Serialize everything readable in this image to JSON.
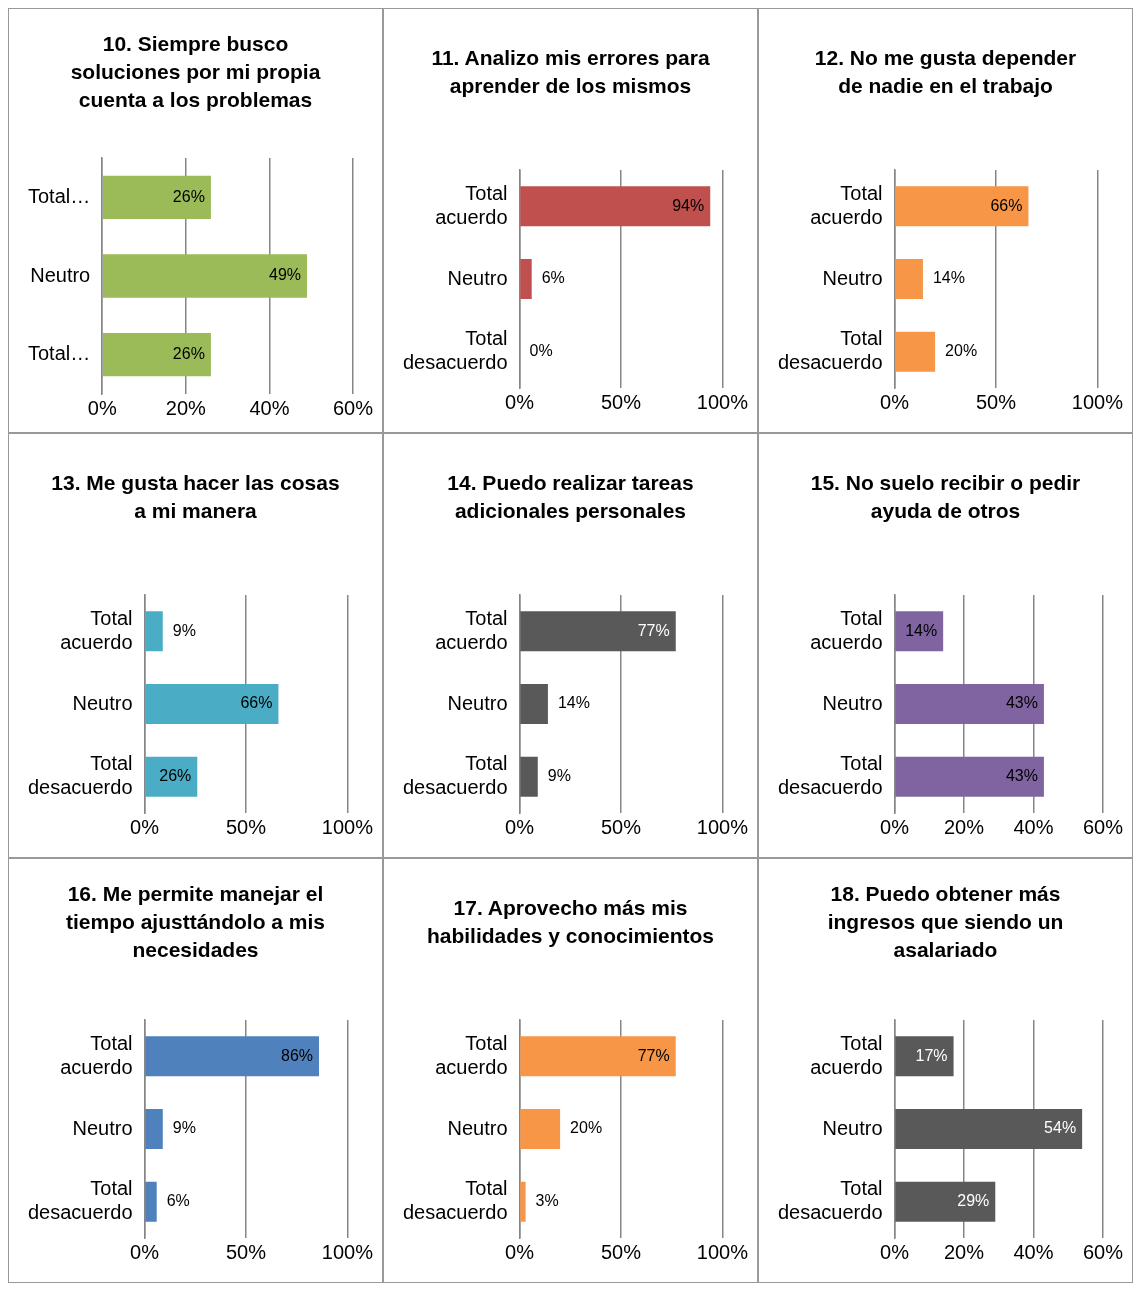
{
  "chart_data": [
    {
      "type": "bar",
      "orientation": "horizontal",
      "title": "10. Siempre busco soluciones por mi propia cuenta a los problemas",
      "categories": [
        "Total…",
        "Neutro",
        "Total…"
      ],
      "values": [
        26,
        49,
        26
      ],
      "value_labels": [
        "26%",
        "49%",
        "26%"
      ],
      "color": "#9bbb59",
      "xlim": [
        0,
        60
      ],
      "xticks": [
        {
          "value": 0,
          "label": "0%"
        },
        {
          "value": 20,
          "label": "20%"
        },
        {
          "value": 40,
          "label": "40%"
        },
        {
          "value": 60,
          "label": "60%"
        }
      ],
      "grid": "x",
      "legend": false
    },
    {
      "type": "bar",
      "orientation": "horizontal",
      "title": "11. Analizo mis errores para aprender de los mismos",
      "categories": [
        "Total acuerdo",
        "Neutro",
        "Total desacuerdo"
      ],
      "values": [
        94,
        6,
        0
      ],
      "value_labels": [
        "94%",
        "6%",
        "0%"
      ],
      "color": "#c0504d",
      "xlim": [
        0,
        100
      ],
      "xticks": [
        {
          "value": 0,
          "label": "0%"
        },
        {
          "value": 50,
          "label": "50%"
        },
        {
          "value": 100,
          "label": "100%"
        }
      ],
      "grid": "x",
      "legend": false
    },
    {
      "type": "bar",
      "orientation": "horizontal",
      "title": "12. No me gusta depender de nadie en el trabajo",
      "categories": [
        "Total acuerdo",
        "Neutro",
        "Total desacuerdo"
      ],
      "values": [
        66,
        14,
        20
      ],
      "value_labels": [
        "66%",
        "14%",
        "20%"
      ],
      "color": "#f79646",
      "xlim": [
        0,
        100
      ],
      "xticks": [
        {
          "value": 0,
          "label": "0%"
        },
        {
          "value": 50,
          "label": "50%"
        },
        {
          "value": 100,
          "label": "100%"
        }
      ],
      "grid": "x",
      "legend": false
    },
    {
      "type": "bar",
      "orientation": "horizontal",
      "title": "13. Me gusta hacer las cosas a mi manera",
      "categories": [
        "Total acuerdo",
        "Neutro",
        "Total desacuerdo"
      ],
      "values": [
        9,
        66,
        26
      ],
      "value_labels": [
        "9%",
        "66%",
        "26%"
      ],
      "color": "#4bacc6",
      "xlim": [
        0,
        100
      ],
      "xticks": [
        {
          "value": 0,
          "label": "0%"
        },
        {
          "value": 50,
          "label": "50%"
        },
        {
          "value": 100,
          "label": "100%"
        }
      ],
      "grid": "x",
      "legend": false
    },
    {
      "type": "bar",
      "orientation": "horizontal",
      "title": "14. Puedo realizar tareas adicionales personales",
      "categories": [
        "Total acuerdo",
        "Neutro",
        "Total desacuerdo"
      ],
      "values": [
        77,
        14,
        9
      ],
      "value_labels": [
        "77%",
        "14%",
        "9%"
      ],
      "color": "#595959",
      "xlim": [
        0,
        100
      ],
      "xticks": [
        {
          "value": 0,
          "label": "0%"
        },
        {
          "value": 50,
          "label": "50%"
        },
        {
          "value": 100,
          "label": "100%"
        }
      ],
      "grid": "x",
      "legend": false
    },
    {
      "type": "bar",
      "orientation": "horizontal",
      "title": "15. No suelo recibir o pedir ayuda de otros",
      "categories": [
        "Total acuerdo",
        "Neutro",
        "Total desacuerdo"
      ],
      "values": [
        14,
        43,
        43
      ],
      "value_labels": [
        "14%",
        "43%",
        "43%"
      ],
      "color": "#8064a2",
      "xlim": [
        0,
        60
      ],
      "xticks": [
        {
          "value": 0,
          "label": "0%"
        },
        {
          "value": 20,
          "label": "20%"
        },
        {
          "value": 40,
          "label": "40%"
        },
        {
          "value": 60,
          "label": "60%"
        }
      ],
      "grid": "x",
      "legend": false
    },
    {
      "type": "bar",
      "orientation": "horizontal",
      "title": "16. Me permite manejar el tiempo ajusttándolo a mis necesidades",
      "categories": [
        "Total acuerdo",
        "Neutro",
        "Total desacuerdo"
      ],
      "values": [
        86,
        9,
        6
      ],
      "value_labels": [
        "86%",
        "9%",
        "6%"
      ],
      "color": "#4f81bd",
      "xlim": [
        0,
        100
      ],
      "xticks": [
        {
          "value": 0,
          "label": "0%"
        },
        {
          "value": 50,
          "label": "50%"
        },
        {
          "value": 100,
          "label": "100%"
        }
      ],
      "grid": "x",
      "legend": false
    },
    {
      "type": "bar",
      "orientation": "horizontal",
      "title": "17. Aprovecho más mis habilidades y conocimientos",
      "categories": [
        "Total acuerdo",
        "Neutro",
        "Total desacuerdo"
      ],
      "values": [
        77,
        20,
        3
      ],
      "value_labels": [
        "77%",
        "20%",
        "3%"
      ],
      "color": "#f79646",
      "xlim": [
        0,
        100
      ],
      "xticks": [
        {
          "value": 0,
          "label": "0%"
        },
        {
          "value": 50,
          "label": "50%"
        },
        {
          "value": 100,
          "label": "100%"
        }
      ],
      "grid": "x",
      "legend": false
    },
    {
      "type": "bar",
      "orientation": "horizontal",
      "title": "18. Puedo obtener más ingresos que siendo un asalariado",
      "categories": [
        "Total acuerdo",
        "Neutro",
        "Total desacuerdo"
      ],
      "values": [
        17,
        54,
        29
      ],
      "value_labels": [
        "17%",
        "54%",
        "29%"
      ],
      "color": "#595959",
      "xlim": [
        0,
        60
      ],
      "xticks": [
        {
          "value": 0,
          "label": "0%"
        },
        {
          "value": 20,
          "label": "20%"
        },
        {
          "value": 40,
          "label": "40%"
        },
        {
          "value": 60,
          "label": "60%"
        }
      ],
      "grid": "x",
      "legend": false
    }
  ]
}
